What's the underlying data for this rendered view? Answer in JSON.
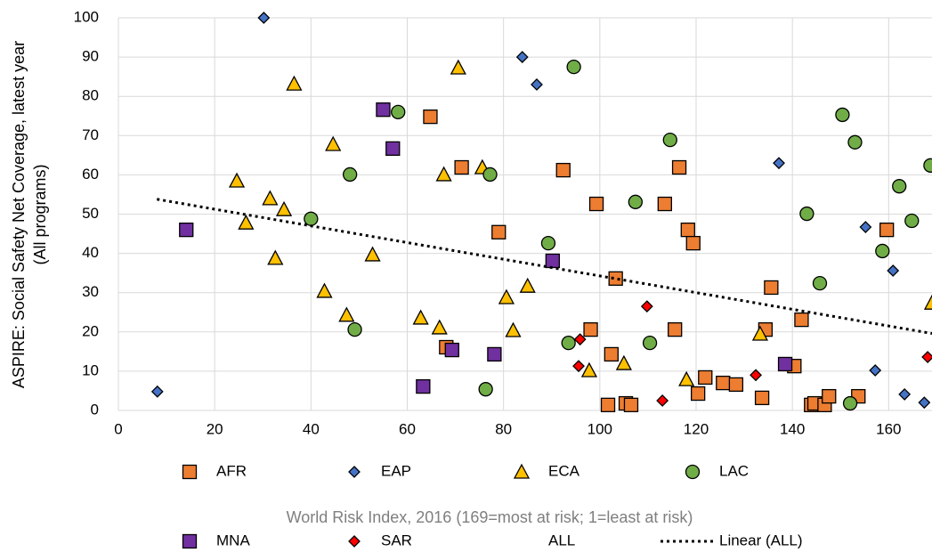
{
  "chart_data": {
    "type": "scatter",
    "xlabel": "World Risk Index, 2016 (169=most at risk; 1=least at risk)",
    "ylabel": [
      "ASPIRE: Social Safety Net Coverage, latest year",
      "(All programs)"
    ],
    "xlim": [
      0,
      169
    ],
    "xticks": [
      0,
      20,
      40,
      60,
      80,
      100,
      120,
      140,
      160
    ],
    "ylim": [
      0,
      100
    ],
    "yticks": [
      0,
      10,
      20,
      30,
      40,
      50,
      60,
      70,
      80,
      90,
      100
    ],
    "grid": true,
    "series": [
      {
        "name": "AFR",
        "color": "#ed7d31",
        "marker": "square",
        "x": [
          64.8,
          71.3,
          79,
          92.4,
          99.3,
          98.1,
          68.1,
          103.3,
          102.4,
          101.7,
          105.4,
          106.5,
          113.5,
          115.6,
          116.5,
          118.3,
          119.4,
          120.4,
          121.9,
          125.6,
          128.3,
          133.7,
          134.4,
          135.6,
          141.9,
          140.4,
          143.9,
          144.6,
          146.7,
          147.6,
          153.7,
          159.6
        ],
        "values": [
          74.8,
          61.9,
          45.4,
          61.2,
          52.6,
          20.6,
          16.1,
          33.6,
          14.3,
          1.4,
          1.8,
          1.4,
          52.6,
          20.6,
          61.9,
          46,
          42.6,
          4.3,
          8.4,
          7,
          6.6,
          3.2,
          20.6,
          31.3,
          23.1,
          11.3,
          1.4,
          1.8,
          1.4,
          3.6,
          3.6,
          46
        ]
      },
      {
        "name": "EAP",
        "color": "#4472c4",
        "marker": "diamond",
        "x": [
          8.1,
          30.2,
          83.9,
          86.9,
          137.2,
          155.2,
          160.9,
          157.2,
          163.3,
          167.4
        ],
        "values": [
          4.8,
          100,
          90,
          83,
          63,
          46.7,
          35.6,
          10.2,
          4.1,
          2
        ]
      },
      {
        "name": "ECA",
        "color": "#ffc000",
        "marker": "triangle",
        "x": [
          24.6,
          26.5,
          31.5,
          32.6,
          34.4,
          36.5,
          42.8,
          44.6,
          47.4,
          52.8,
          62.8,
          66.7,
          67.6,
          70.6,
          75.6,
          80.6,
          82,
          85,
          97.8,
          105,
          118,
          133.3,
          169
        ],
        "values": [
          58.5,
          47.8,
          54,
          38.8,
          51.2,
          83.2,
          30.4,
          67.8,
          24.3,
          39.7,
          23.6,
          21.1,
          60.1,
          87.3,
          61.9,
          28.8,
          20.4,
          31.7,
          10.2,
          12,
          7.9,
          19.5,
          27.4
        ]
      },
      {
        "name": "LAC",
        "color": "#70ad47",
        "marker": "circle",
        "x": [
          40,
          48.1,
          49.1,
          58.1,
          76.3,
          77.2,
          89.3,
          93.5,
          94.6,
          107.4,
          110.4,
          114.6,
          143,
          145.7,
          150.4,
          153,
          152,
          158.7,
          162.2,
          164.8,
          168.7
        ],
        "values": [
          48.8,
          60.1,
          20.6,
          76,
          5.4,
          60.1,
          42.6,
          17.2,
          87.5,
          53.1,
          17.2,
          68.9,
          50.1,
          32.4,
          75.3,
          68.3,
          1.8,
          40.6,
          57.1,
          48.3,
          62.4
        ]
      },
      {
        "name": "MNA",
        "color": "#7030a0",
        "marker": "square",
        "x": [
          14.1,
          55,
          57,
          63.3,
          69.3,
          78.1,
          90.2,
          138.5
        ],
        "values": [
          46,
          76.6,
          66.7,
          6.1,
          15.4,
          14.3,
          38.1,
          11.8
        ]
      },
      {
        "name": "SAR",
        "color": "#ff0000",
        "marker": "diamond",
        "x": [
          95.9,
          95.6,
          109.8,
          113,
          132.4,
          168.1
        ],
        "values": [
          18.1,
          11.3,
          26.5,
          2.5,
          9,
          13.6
        ]
      },
      {
        "name": "ALL",
        "x": [],
        "values": []
      }
    ],
    "trendline": {
      "name": "Linear (ALL)",
      "color": "#000000",
      "x": [
        8,
        169
      ],
      "values": [
        53.8,
        19.6
      ]
    }
  }
}
